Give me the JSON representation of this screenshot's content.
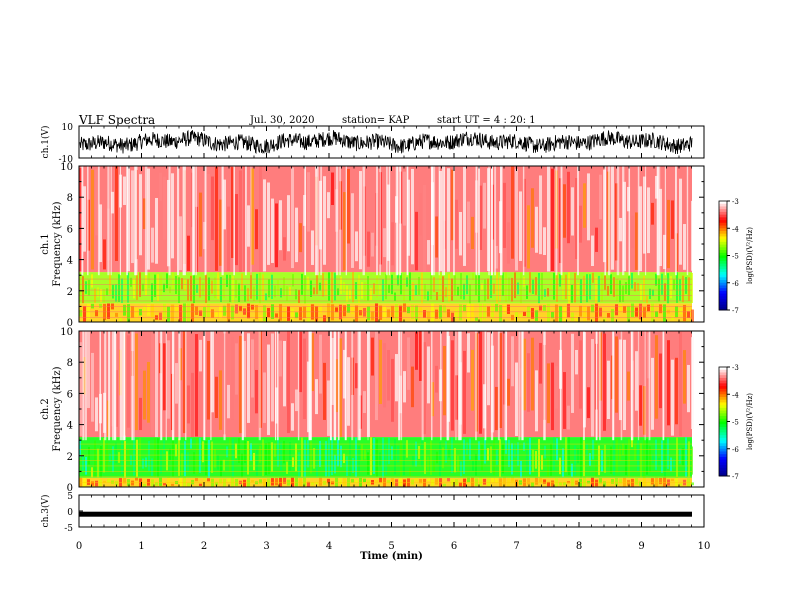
{
  "header": {
    "title": "VLF Spectra",
    "date": "Jul. 30, 2020",
    "station": "station= KAP",
    "start": "start UT =  4 : 20: 1"
  },
  "chart_data": [
    {
      "type": "line",
      "panel": "ch1-waveform",
      "ylabel": "ch.1(V)",
      "ylim": [
        -10,
        10
      ],
      "xlim": [
        0,
        10
      ],
      "yticks": [
        "10",
        "-10"
      ],
      "description_values": "dense noisy waveform mostly between about -5 and 5 V"
    },
    {
      "type": "heatmap",
      "panel": "ch1-spectrogram",
      "ylabel": "ch.1",
      "ylabel2": "Frequency (kHz)",
      "xlim": [
        0,
        10
      ],
      "ylim": [
        0,
        10
      ],
      "yticks": [
        "0",
        "2",
        "4",
        "6",
        "8",
        "10"
      ],
      "bands": [
        {
          "from": 0,
          "to": 1.2,
          "level": -4.2
        },
        {
          "from": 1.2,
          "to": 3.2,
          "level": -4.6
        },
        {
          "from": 3.2,
          "to": 10,
          "level": -3.4
        }
      ]
    },
    {
      "type": "heatmap",
      "panel": "ch2-spectrogram",
      "ylabel": "ch.2",
      "ylabel2": "Frequency (kHz)",
      "xlim": [
        0,
        10
      ],
      "ylim": [
        0,
        10
      ],
      "yticks": [
        "0",
        "2",
        "4",
        "6",
        "8",
        "10"
      ],
      "bands": [
        {
          "from": 0,
          "to": 0.6,
          "level": -4.2
        },
        {
          "from": 0.6,
          "to": 3.2,
          "level": -5.0
        },
        {
          "from": 3.2,
          "to": 10,
          "level": -3.4
        }
      ]
    },
    {
      "type": "line",
      "panel": "ch3-waveform",
      "ylabel": "ch.3(V)",
      "ylim": [
        -5,
        5
      ],
      "xlim": [
        0,
        10
      ],
      "yticks": [
        "5",
        "0",
        "-5"
      ],
      "xticks": [
        "0",
        "1",
        "2",
        "3",
        "4",
        "5",
        "6",
        "7",
        "8",
        "9",
        "10"
      ],
      "xlabel": "Time (min)",
      "level": -1.0
    }
  ],
  "colorbar": {
    "label": "log(PSD)(V²/Hz)",
    "range": [
      -7,
      -3
    ],
    "ticks": [
      "-3",
      "-4",
      "-5",
      "-6",
      "-7"
    ],
    "colors": [
      "#00007f",
      "#0000ff",
      "#00ffff",
      "#00ff00",
      "#ffff00",
      "#ff0000",
      "#ffffff"
    ]
  }
}
